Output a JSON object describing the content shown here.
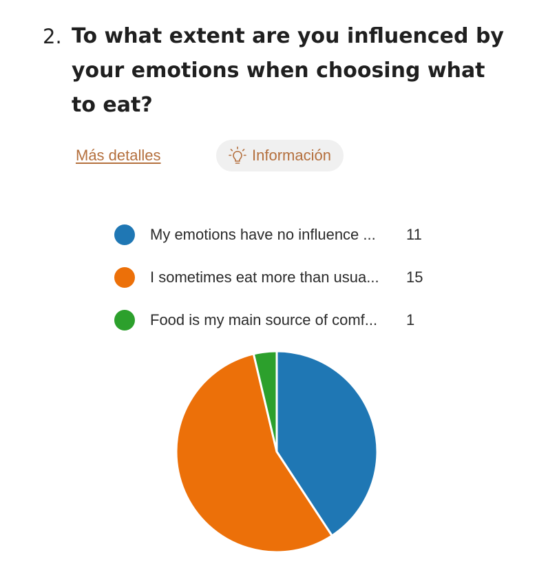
{
  "question": {
    "number": "2.",
    "title": "To what extent are you influenced by your emotions when choosing what to eat?"
  },
  "actions": {
    "details_label": "Más detalles",
    "info_label": "Información",
    "info_icon": "lightbulb-icon"
  },
  "chart_data": {
    "type": "pie",
    "title": "",
    "legend_position": "top",
    "categories": [
      "My emotions have no influence ...",
      "I sometimes eat more than usua...",
      "Food is my main source of comf..."
    ],
    "values": [
      11,
      15,
      1
    ],
    "colors": [
      "#1f77b4",
      "#ec7009",
      "#2ca02c"
    ]
  }
}
